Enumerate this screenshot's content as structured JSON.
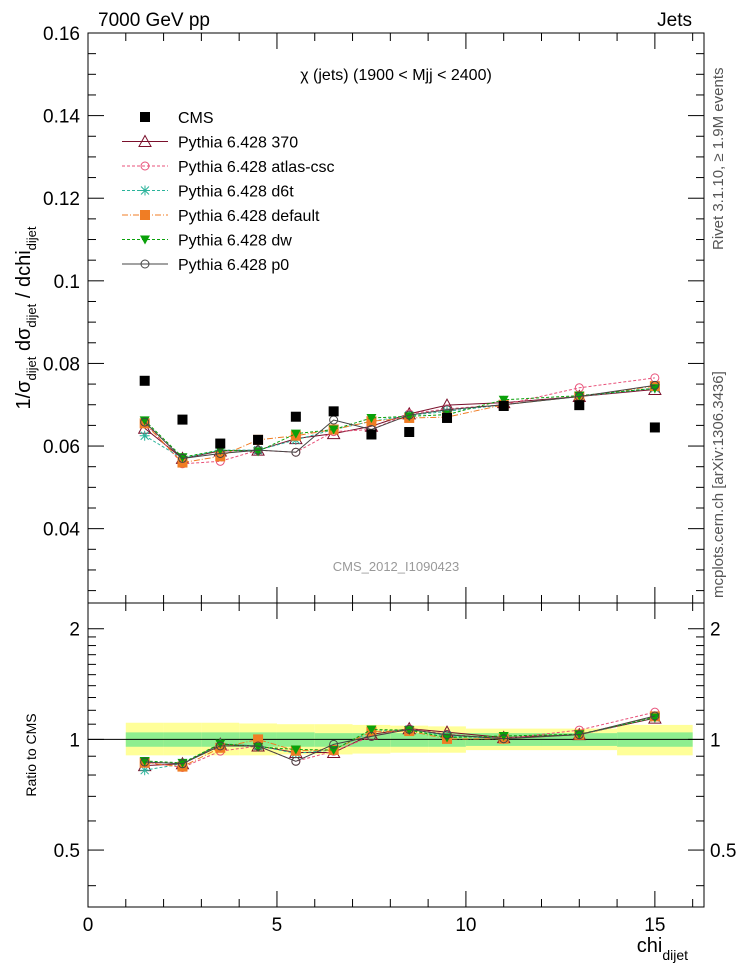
{
  "header": {
    "left": "7000 GeV pp",
    "right": "Jets",
    "plot_title": "χ (jets) (1900 < Mjj < 2400)",
    "analysis_id": "CMS_2012_I1090423",
    "side_rivet": "Rivet 3.1.10, ≥ 1.9M events",
    "side_site": "mcplots.cern.ch [arXiv:1306.3436]"
  },
  "axes": {
    "main_ylabel_parts": {
      "pre": "1/σ",
      "sub1": "dijet",
      "mid": " dσ",
      "sub2": "dijet",
      "post": " / dchi",
      "sub3": "dijet"
    },
    "ratio_ylabel": "Ratio to CMS",
    "xlabel_main": "chi",
    "xlabel_sub": "dijet",
    "x_ticklabels": [
      "0",
      "5",
      "10",
      "15"
    ],
    "main_yticklabels": [
      "0.04",
      "0.06",
      "0.08",
      "0.1",
      "0.12",
      "0.14",
      "0.16"
    ],
    "ratio_yticklabels": [
      "0.5",
      "1",
      "2"
    ]
  },
  "chart_data": {
    "type": "scatter",
    "xlim": [
      0,
      16.3
    ],
    "ylim": [
      0.022,
      0.16
    ],
    "ratio_ylim": [
      0.35,
      2.35
    ],
    "x": [
      1.5,
      2.5,
      3.5,
      4.5,
      5.5,
      6.5,
      7.5,
      8.5,
      9.5,
      11,
      13,
      15
    ],
    "data": {
      "name": "CMS",
      "values": [
        0.0758,
        0.0664,
        0.0606,
        0.0615,
        0.0671,
        0.0684,
        0.0628,
        0.0634,
        0.0668,
        0.0697,
        0.0699,
        0.0645
      ]
    },
    "band": {
      "x_edges": [
        1,
        2,
        3,
        4,
        5,
        6,
        7,
        8,
        9,
        10,
        12,
        14,
        16
      ],
      "inner_lo": [
        0.955,
        0.955,
        0.955,
        0.955,
        0.955,
        0.955,
        0.955,
        0.955,
        0.955,
        0.96,
        0.96,
        0.955
      ],
      "inner_hi": [
        1.045,
        1.045,
        1.045,
        1.045,
        1.045,
        1.04,
        1.04,
        1.04,
        1.04,
        1.04,
        1.04,
        1.045
      ],
      "outer_lo": [
        0.905,
        0.905,
        0.905,
        0.905,
        0.91,
        0.91,
        0.915,
        0.92,
        0.92,
        0.935,
        0.935,
        0.905
      ],
      "outer_hi": [
        1.11,
        1.11,
        1.11,
        1.105,
        1.1,
        1.1,
        1.095,
        1.09,
        1.085,
        1.07,
        1.07,
        1.095
      ]
    },
    "series": [
      {
        "name": "Pythia 6.428 370",
        "color": "#7a0f2b",
        "marker": "triangle-open",
        "dash": "",
        "values": [
          0.0643,
          0.057,
          0.0588,
          0.059,
          0.0618,
          0.063,
          0.0648,
          0.0678,
          0.0699,
          0.0705,
          0.072,
          0.0737
        ]
      },
      {
        "name": "Pythia 6.428 atlas-csc",
        "color": "#e8527a",
        "marker": "circle-open",
        "dash": "3,2",
        "values": [
          0.0658,
          0.0557,
          0.0563,
          0.059,
          0.0585,
          0.0635,
          0.064,
          0.0678,
          0.069,
          0.07,
          0.0741,
          0.0765
        ]
      },
      {
        "name": "Pythia 6.428 d6t",
        "color": "#2ab39a",
        "marker": "star",
        "dash": "3,2",
        "values": [
          0.0625,
          0.057,
          0.059,
          0.059,
          0.0615,
          0.064,
          0.066,
          0.0674,
          0.0684,
          0.07,
          0.072,
          0.074
        ]
      },
      {
        "name": "Pythia 6.428 default",
        "color": "#f07d24",
        "marker": "square",
        "dash": "6,2,1,2",
        "values": [
          0.0655,
          0.056,
          0.0575,
          0.0615,
          0.0625,
          0.064,
          0.066,
          0.0668,
          0.067,
          0.07,
          0.072,
          0.0745
        ]
      },
      {
        "name": "Pythia 6.428 dw",
        "color": "#0aa10a",
        "marker": "triangle-down",
        "dash": "3,2",
        "values": [
          0.0662,
          0.0573,
          0.059,
          0.0587,
          0.063,
          0.064,
          0.0668,
          0.0672,
          0.0676,
          0.0712,
          0.0722,
          0.074
        ]
      },
      {
        "name": "Pythia 6.428 p0",
        "color": "#444444",
        "marker": "circle-open",
        "dash": "",
        "values": [
          0.0658,
          0.057,
          0.0582,
          0.059,
          0.0585,
          0.0663,
          0.064,
          0.0675,
          0.0688,
          0.07,
          0.072,
          0.0747
        ]
      }
    ]
  }
}
